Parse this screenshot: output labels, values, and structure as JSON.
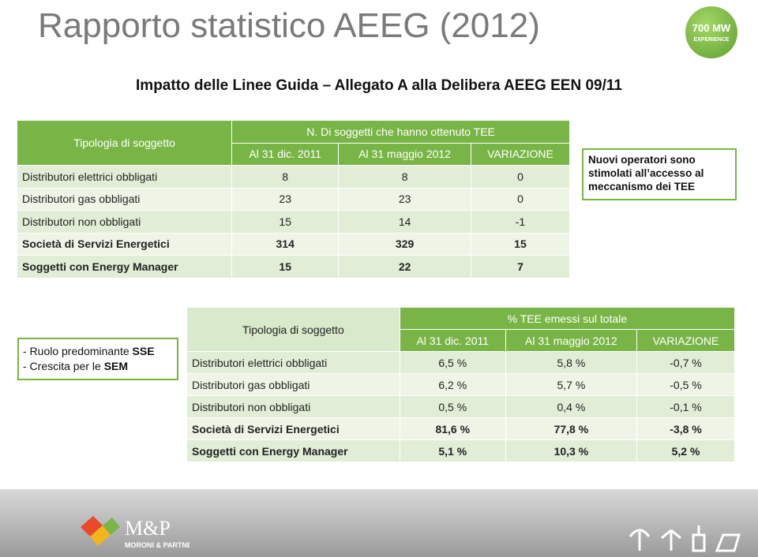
{
  "header": {
    "title": "Rapporto statistico AEEG (2012)",
    "logo_big": "700 MW",
    "logo_small": "EXPERIENCE",
    "subtitle": "Impatto delle Linee Guida – Allegato A alla Delibera AEEG EEN 09/11"
  },
  "table1": {
    "row_header": "Tipologia di soggetto",
    "group_header": "N. Di soggetti che hanno ottenuto TEE",
    "columns": [
      "Al 31 dic. 2011",
      "Al 31 maggio 2012",
      "VARIAZIONE"
    ],
    "rows": [
      [
        "Distributori elettrici obbligati",
        8,
        8,
        0
      ],
      [
        "Distributori gas obbligati",
        23,
        23,
        0
      ],
      [
        "Distributori non obbligati",
        15,
        14,
        -1
      ],
      [
        "Società di Servizi Energetici",
        314,
        329,
        15
      ],
      [
        "Soggetti con Energy Manager",
        15,
        22,
        7
      ]
    ]
  },
  "note": "Nuovi operatori sono stimolati all’accesso al meccanismo dei TEE",
  "side_note": {
    "line1": "- Ruolo predominante ",
    "line1_bold": "SSE",
    "line2": "- Crescita per le ",
    "line2_bold": "SEM"
  },
  "table2": {
    "row_header": "Tipologia di soggetto",
    "group_header": "% TEE emessi sul totale",
    "columns": [
      "Al 31 dic. 2011",
      "Al 31 maggio 2012",
      "VARIAZIONE"
    ],
    "rows": [
      [
        "Distributori elettrici obbligati",
        "6,5 %",
        "5,8 %",
        "-0,7 %"
      ],
      [
        "Distributori gas obbligati",
        "6,2 %",
        "5,7 %",
        "-0,5 %"
      ],
      [
        "Distributori non obbligati",
        "0,5 %",
        "0,4 %",
        "-0,1 %"
      ],
      [
        "Società di Servizi Energetici",
        "81,6 %",
        "77,8 %",
        "-3,8 %"
      ],
      [
        "Soggetti con Energy Manager",
        "5,1 %",
        "10,3 %",
        "5,2 %"
      ]
    ]
  },
  "footer": {
    "brand": "M&P",
    "brand_sub": "MORONI & PARTNERS"
  }
}
